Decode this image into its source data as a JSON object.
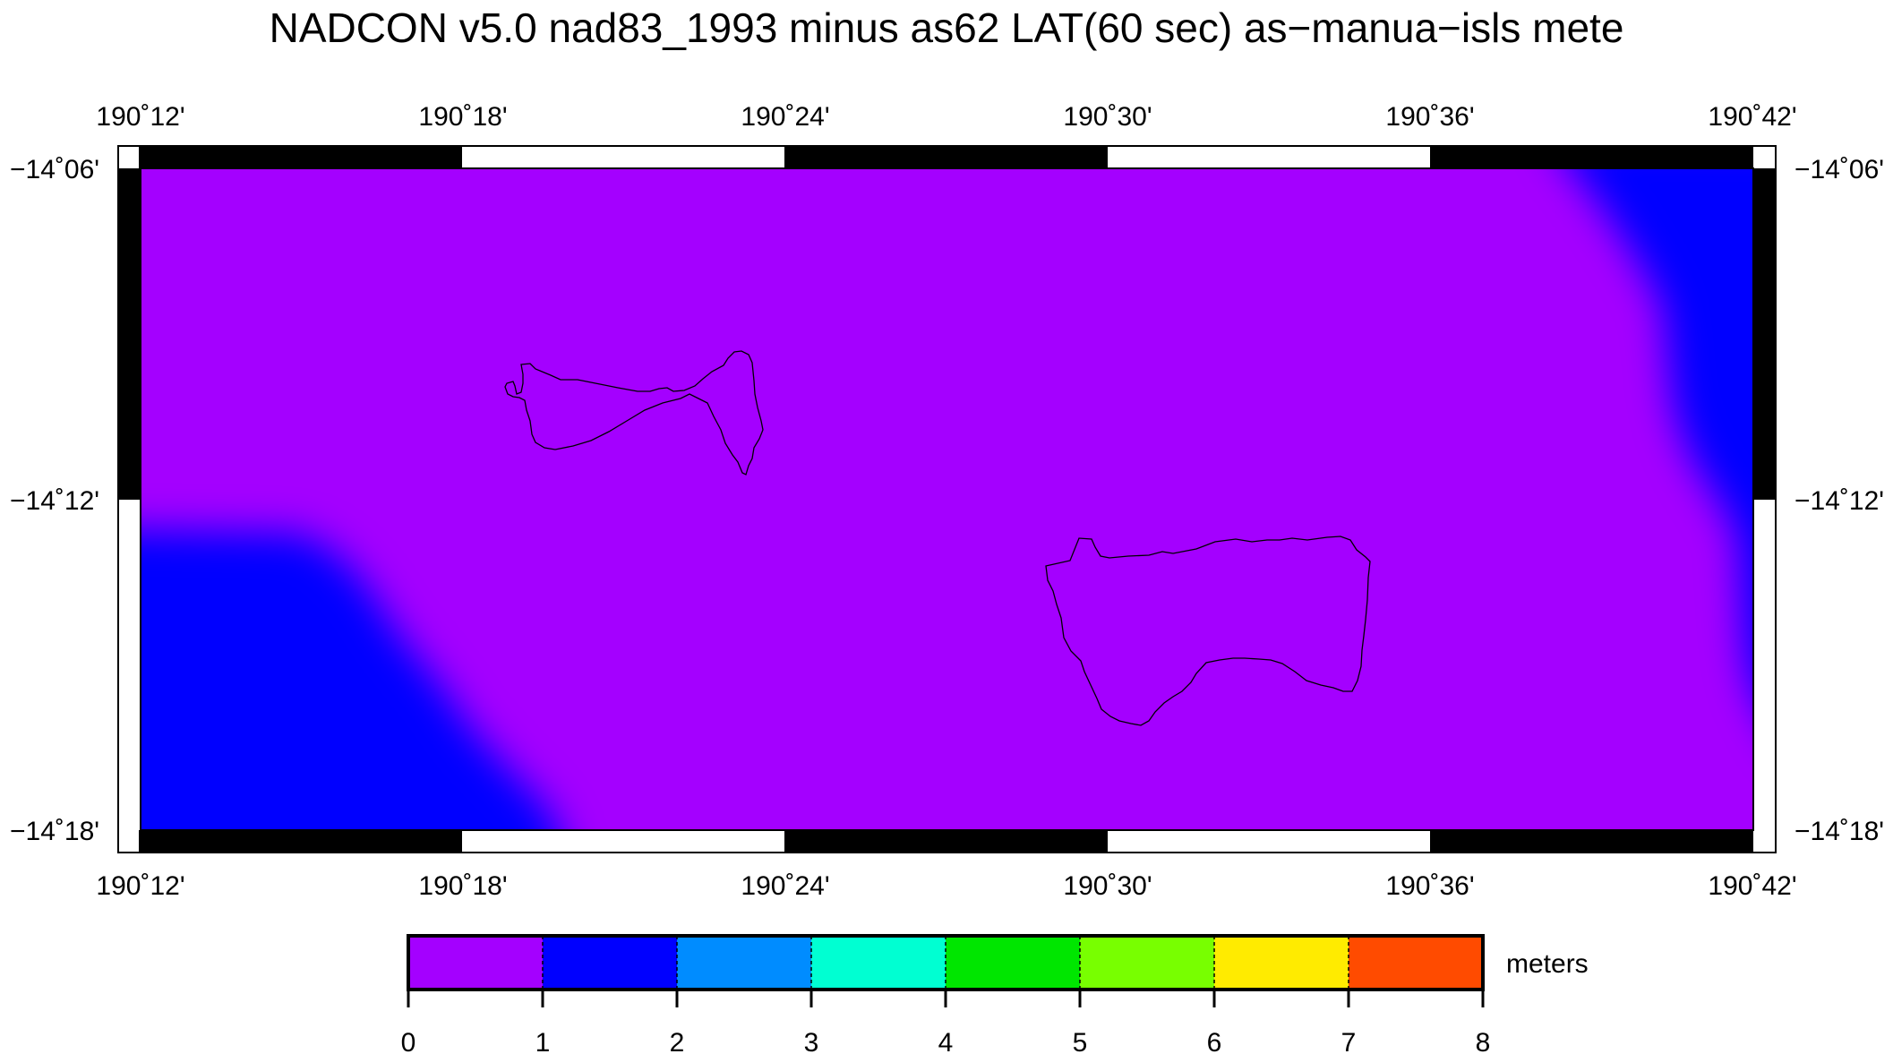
{
  "title": "NADCON v5.0 nad83_1993 minus as62 LAT(60 sec) as−manua−isls mete",
  "map": {
    "lon_labels": [
      "190˚12'",
      "190˚18'",
      "190˚24'",
      "190˚30'",
      "190˚36'",
      "190˚42'"
    ],
    "lat_labels": [
      "−14˚06'",
      "−14˚12'",
      "−14˚18'"
    ],
    "lon_range_deg": [
      190.2,
      190.7
    ],
    "lat_range_deg": [
      -14.3,
      -14.1
    ],
    "background_color": "#a400ff",
    "anomaly_color": "#0000ff",
    "coastline_color": "#000000",
    "features": [
      "Ofu-Olosega",
      "Ta'ū"
    ]
  },
  "colorbar": {
    "unit_label": "meters",
    "tick_labels": [
      "0",
      "1",
      "2",
      "3",
      "4",
      "5",
      "6",
      "7",
      "8"
    ],
    "range": [
      0,
      8
    ],
    "bins": [
      {
        "from": 0,
        "to": 1,
        "color": "#a400ff"
      },
      {
        "from": 1,
        "to": 2,
        "color": "#0000ff"
      },
      {
        "from": 2,
        "to": 3,
        "color": "#008cff"
      },
      {
        "from": 3,
        "to": 4,
        "color": "#00ffd2"
      },
      {
        "from": 4,
        "to": 5,
        "color": "#00e600"
      },
      {
        "from": 5,
        "to": 6,
        "color": "#78ff00"
      },
      {
        "from": 6,
        "to": 7,
        "color": "#ffeb00"
      },
      {
        "from": 7,
        "to": 8,
        "color": "#ff4b00"
      }
    ]
  }
}
